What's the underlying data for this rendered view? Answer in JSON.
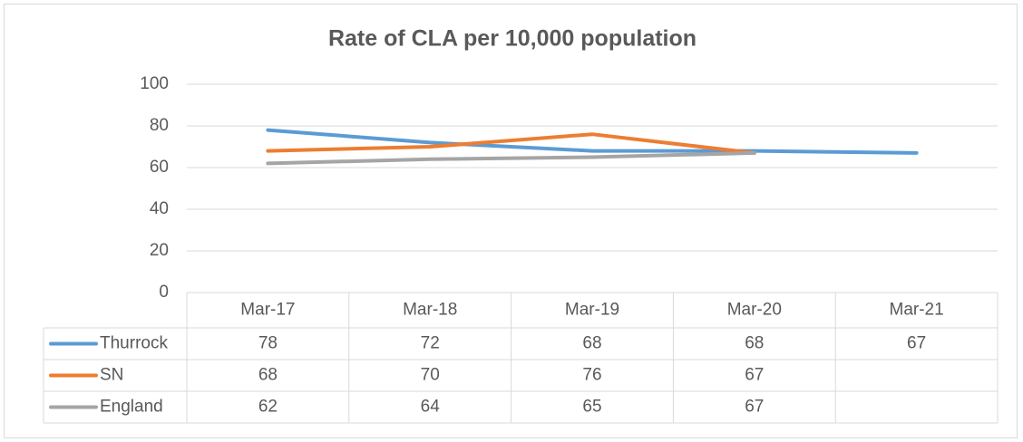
{
  "chart_data": {
    "type": "line",
    "title": "Rate of CLA per 10,000 population",
    "categories": [
      "Mar-17",
      "Mar-18",
      "Mar-19",
      "Mar-20",
      "Mar-21"
    ],
    "series": [
      {
        "name": "Thurrock",
        "color": "#5b9bd5",
        "values": [
          78,
          72,
          68,
          68,
          67
        ]
      },
      {
        "name": "SN",
        "color": "#ed7d31",
        "values": [
          68,
          70,
          76,
          67,
          null
        ]
      },
      {
        "name": "England",
        "color": "#a5a5a5",
        "values": [
          62,
          64,
          65,
          67,
          null
        ]
      }
    ],
    "ylim": [
      0,
      100
    ],
    "yticks": [
      0,
      20,
      40,
      60,
      80,
      100
    ],
    "grid": true
  }
}
